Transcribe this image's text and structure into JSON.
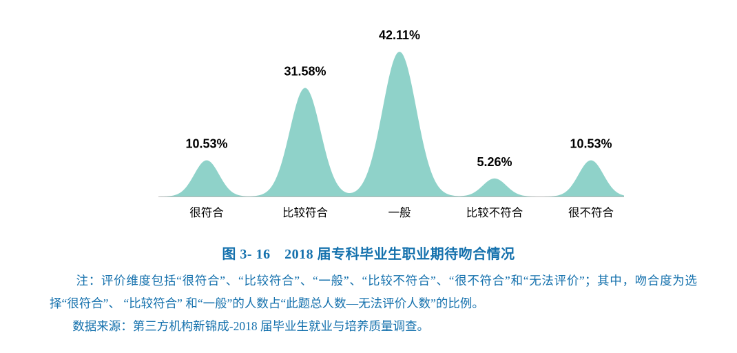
{
  "chart_data": {
    "type": "area",
    "subtype": "smooth-gaussian-peaks",
    "title": "",
    "categories": [
      "很符合",
      "比较符合",
      "一般",
      "比较不符合",
      "很不符合"
    ],
    "values": [
      10.53,
      31.58,
      42.11,
      5.26,
      10.53
    ],
    "value_labels": [
      "10.53%",
      "31.58%",
      "42.11%",
      "5.26%",
      "10.53%"
    ],
    "xlabel": "",
    "ylabel": "",
    "ylim": [
      0,
      45
    ],
    "grid": false,
    "legend": false,
    "fill_color": "#8fd2c9",
    "baseline_color": "#b8b8b8",
    "value_label_color": "#000000",
    "category_label_color": "#000000"
  },
  "caption": "图 3- 16　2018 届专科毕业生职业期待吻合情况",
  "notes": {
    "note_line": "注：评价维度包括“很符合”、“比较符合”、“一般”、“比较不符合”、“很不符合”和“无法评价”；其中，吻合度为选择“很符合”、 “比较符合” 和“一般”的人数占“此题总人数—无法评价人数”的比例。",
    "source_line": "数据来源：第三方机构新锦成-2018 届毕业生就业与培养质量调查。"
  },
  "colors": {
    "text_blue": "#1571ad",
    "curve_teal": "#8fd2c9"
  }
}
